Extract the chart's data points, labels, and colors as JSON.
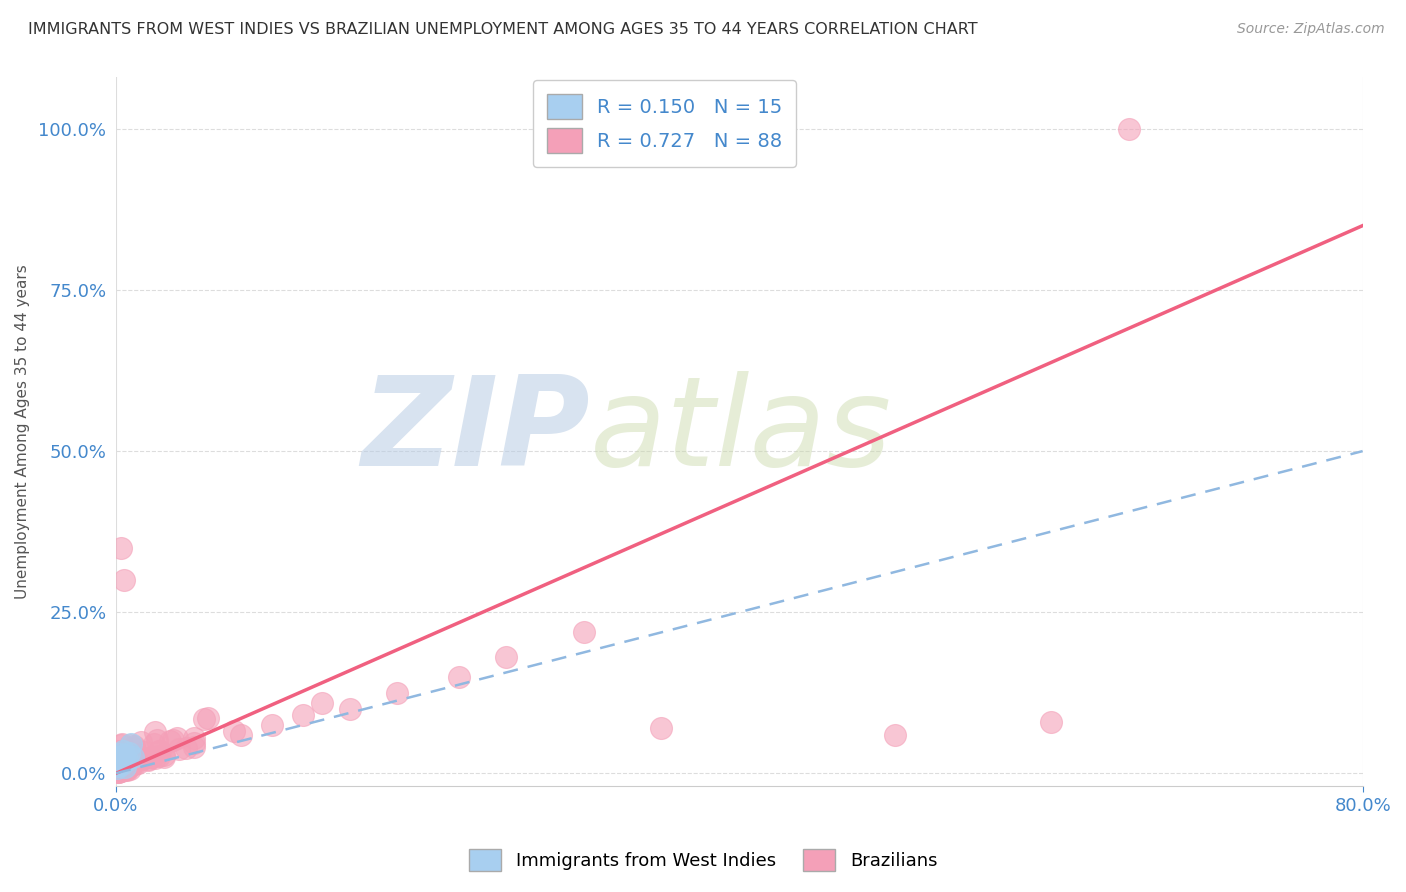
{
  "title": "IMMIGRANTS FROM WEST INDIES VS BRAZILIAN UNEMPLOYMENT AMONG AGES 35 TO 44 YEARS CORRELATION CHART",
  "source": "Source: ZipAtlas.com",
  "ylabel": "Unemployment Among Ages 35 to 44 years",
  "xlim": [
    0,
    80
  ],
  "ylim": [
    -2,
    108
  ],
  "x_ticks": [
    0,
    80
  ],
  "x_tick_labels": [
    "0.0%",
    "80.0%"
  ],
  "y_ticks": [
    0,
    25,
    50,
    75,
    100
  ],
  "y_tick_labels": [
    "0.0%",
    "25.0%",
    "50.0%",
    "75.0%",
    "100.0%"
  ],
  "watermark_zip": "ZIP",
  "watermark_atlas": "atlas",
  "legend_R1": "R = 0.150",
  "legend_N1": "N = 15",
  "legend_R2": "R = 0.727",
  "legend_N2": "N = 88",
  "color_westindies": "#a8cff0",
  "color_brazilians": "#f4a0b8",
  "color_line_westindies": "#90b8e0",
  "color_line_brazilians": "#f06080",
  "color_axis": "#4488cc",
  "color_title": "#333333",
  "color_source": "#999999",
  "color_watermark_zip": "#b8cce4",
  "color_watermark_atlas": "#c8d8a8",
  "background_color": "#ffffff",
  "grid_color": "#dddddd",
  "br_line_x0": 0,
  "br_line_y0": 0,
  "br_line_x1": 80,
  "br_line_y1": 85,
  "wi_line_x0": 0,
  "wi_line_y0": 0,
  "wi_line_x1": 80,
  "wi_line_y1": 50
}
